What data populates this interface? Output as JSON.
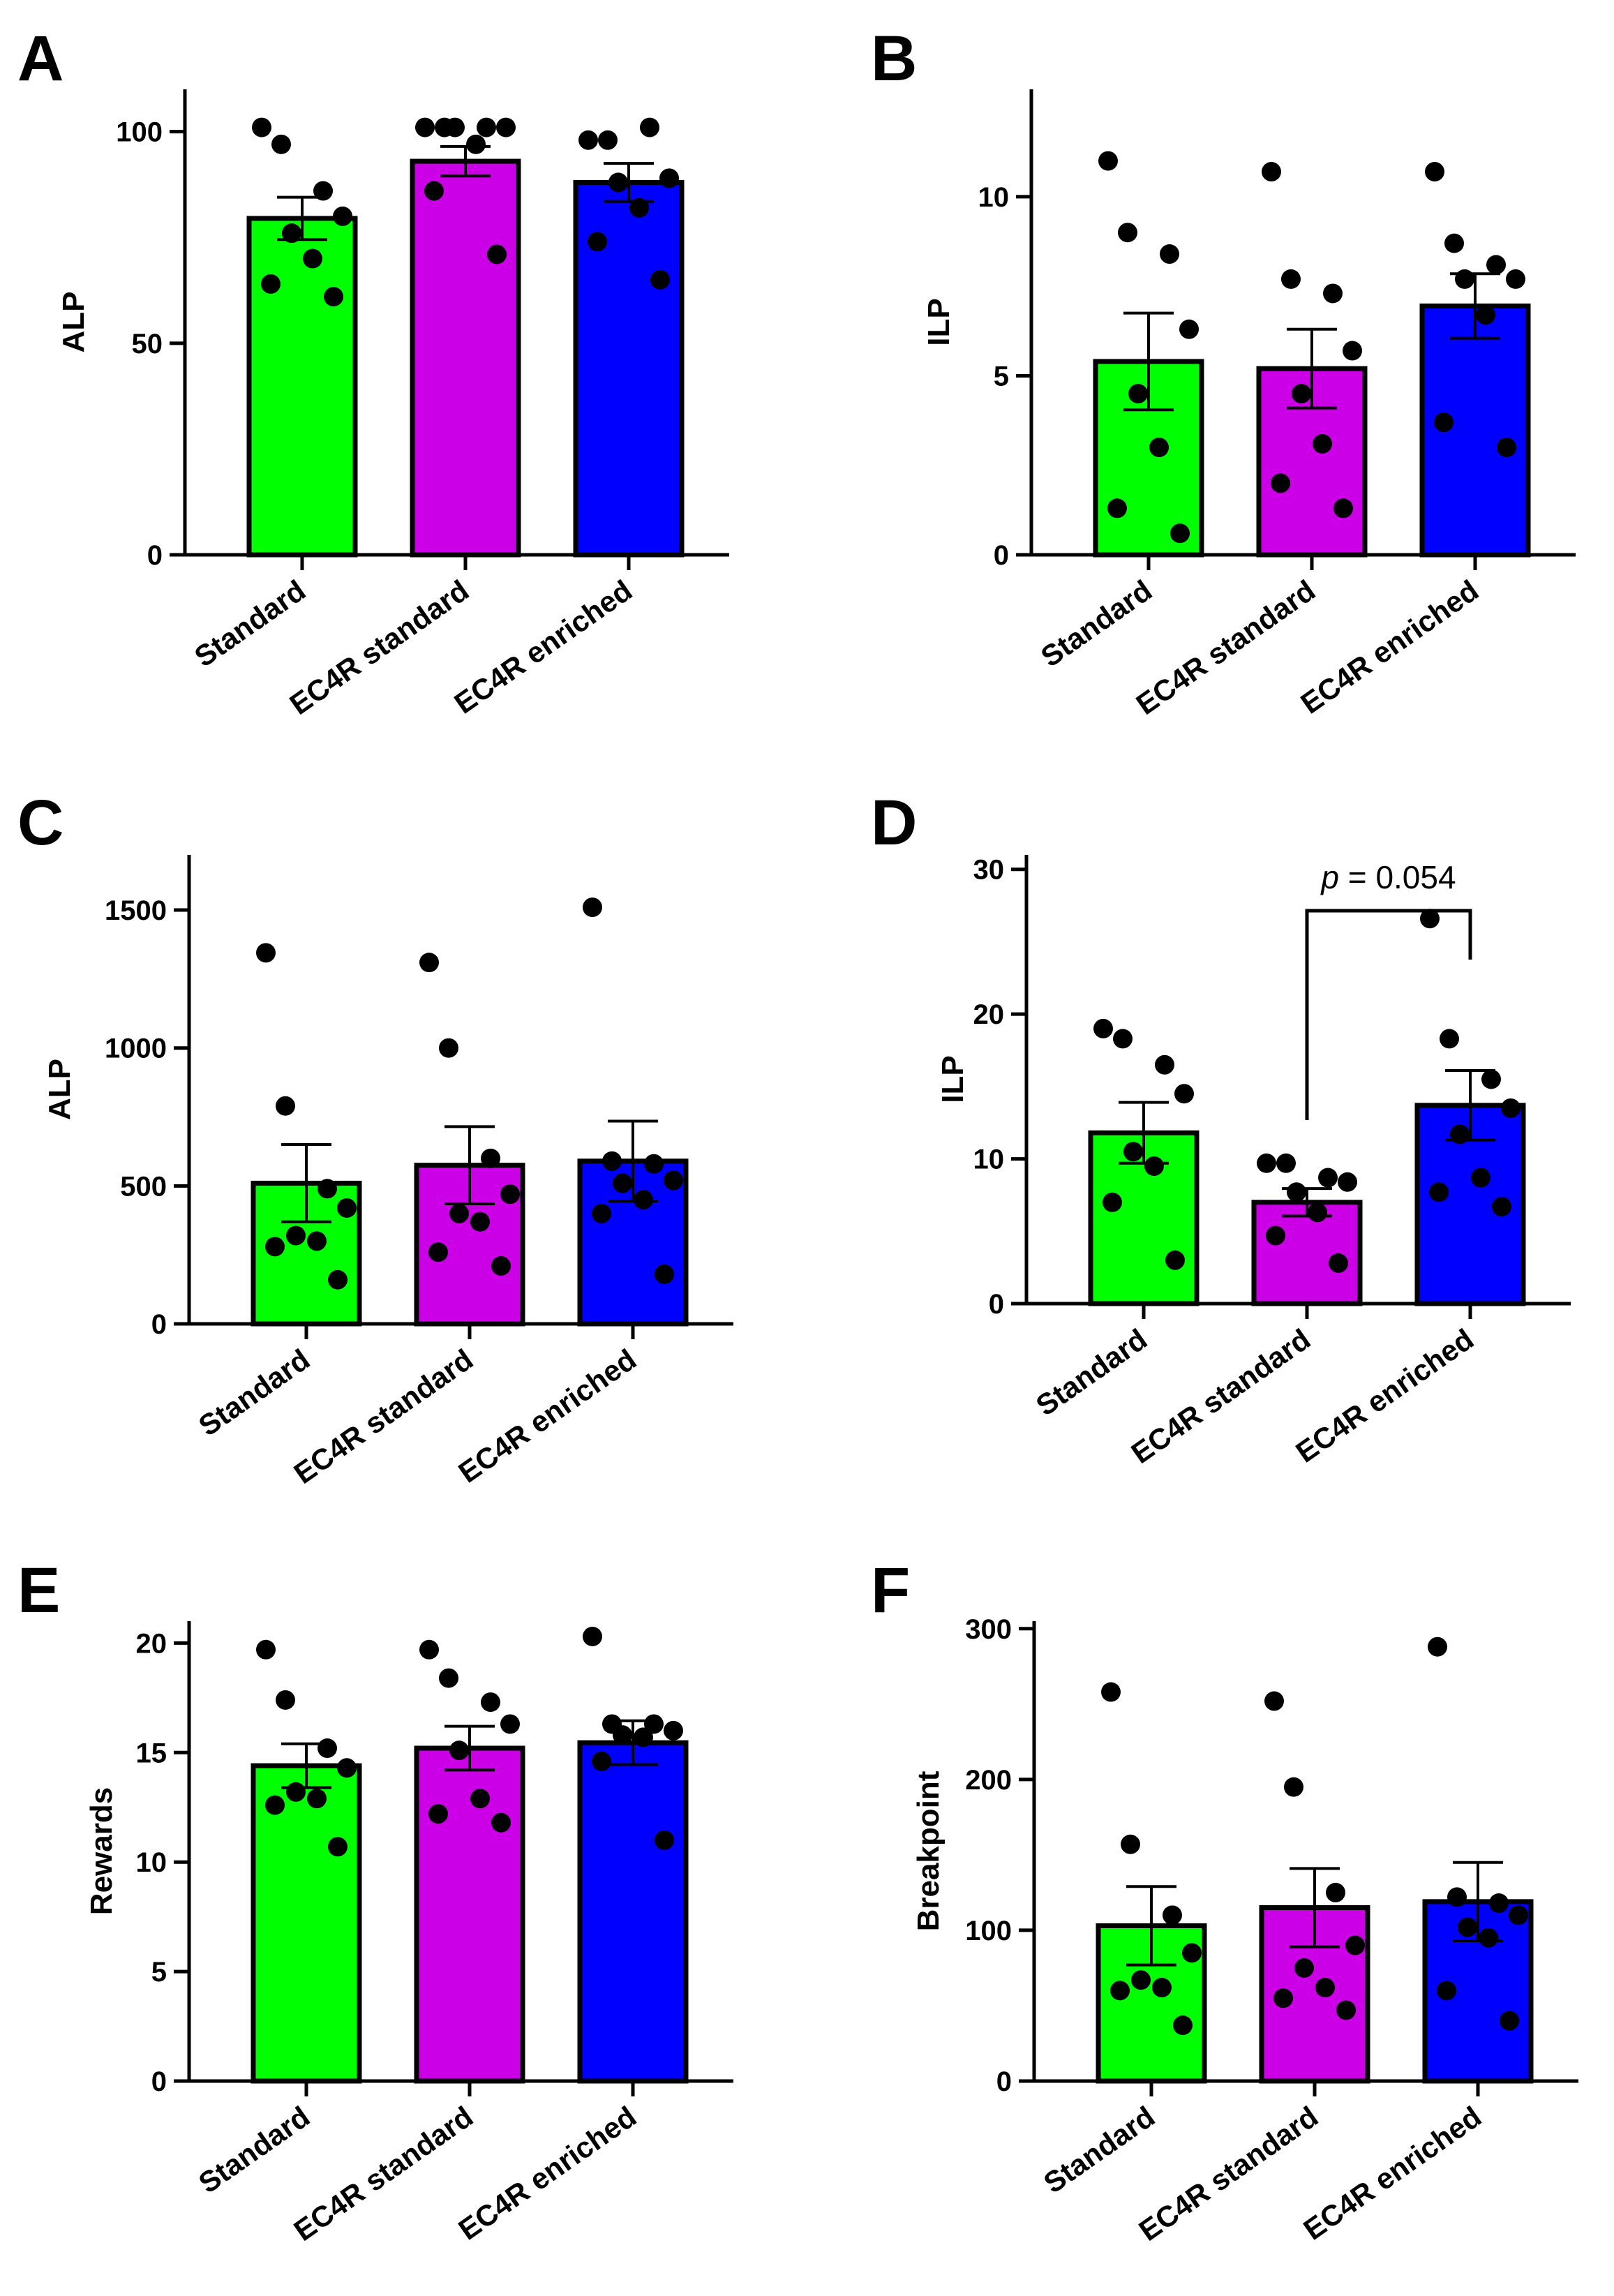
{
  "figure": {
    "colors": {
      "Standard": "#00ff00",
      "EC4R standard": "#cc00e6",
      "EC4R enriched": "#0000ff"
    }
  },
  "chart_data": [
    {
      "panel": "A",
      "type": "bar",
      "ylabel": "ALP",
      "ylim": [
        0,
        110
      ],
      "yticks": [
        0,
        50,
        100
      ],
      "categories": [
        "Standard",
        "EC4R standard",
        "EC4R enriched"
      ],
      "values": [
        79.5,
        93,
        88
      ],
      "sem": [
        5,
        3.5,
        4.5
      ],
      "points": [
        [
          101,
          97,
          86,
          80,
          76,
          70,
          64,
          61
        ],
        [
          101,
          101,
          101,
          101,
          101,
          97,
          86,
          71
        ],
        [
          98,
          98,
          101,
          89,
          88,
          82,
          74,
          65
        ]
      ]
    },
    {
      "panel": "B",
      "type": "bar",
      "ylabel": "ILP",
      "ylim": [
        0,
        13
      ],
      "yticks": [
        0,
        5,
        10
      ],
      "categories": [
        "Standard",
        "EC4R standard",
        "EC4R enriched"
      ],
      "values": [
        5.4,
        5.2,
        6.95
      ],
      "sem": [
        1.35,
        1.1,
        0.9
      ],
      "points": [
        [
          11,
          9,
          8.4,
          6.3,
          4.5,
          3,
          1.3,
          0.6
        ],
        [
          10.7,
          7.7,
          7.3,
          5.7,
          4.5,
          3.1,
          2,
          1.3
        ],
        [
          10.7,
          8.7,
          8.1,
          7.7,
          7.7,
          6.7,
          3.7,
          3
        ]
      ]
    },
    {
      "panel": "C",
      "type": "bar",
      "ylabel": "ALP",
      "ylim": [
        0,
        1700
      ],
      "yticks": [
        0,
        500,
        1000,
        1500
      ],
      "categories": [
        "Standard",
        "EC4R standard",
        "EC4R enriched"
      ],
      "values": [
        510,
        575,
        590
      ],
      "sem": [
        140,
        140,
        145
      ],
      "points": [
        [
          1345,
          790,
          490,
          420,
          320,
          300,
          280,
          160
        ],
        [
          1310,
          1000,
          600,
          470,
          400,
          370,
          260,
          210
        ],
        [
          1510,
          590,
          580,
          520,
          510,
          450,
          400,
          180
        ]
      ]
    },
    {
      "panel": "D",
      "type": "bar",
      "ylabel": "ILP",
      "ylim": [
        0,
        31
      ],
      "yticks": [
        0,
        10,
        20,
        30
      ],
      "categories": [
        "Standard",
        "EC4R standard",
        "EC4R enriched"
      ],
      "values": [
        11.8,
        7,
        13.7
      ],
      "sem": [
        2.1,
        0.95,
        2.4
      ],
      "points": [
        [
          19,
          18.3,
          16.5,
          14.5,
          10.5,
          9.5,
          7,
          3
        ],
        [
          9.7,
          9.7,
          8.7,
          8.4,
          7.7,
          6.3,
          4.7,
          2.8
        ],
        [
          26.6,
          18.3,
          15.5,
          13.5,
          11.7,
          8.7,
          7.7,
          6.7
        ]
      ],
      "annotation": {
        "prefix": "p",
        "text": " = 0.054",
        "between": [
          "EC4R standard",
          "EC4R enriched"
        ]
      }
    },
    {
      "panel": "E",
      "type": "bar",
      "ylabel": "Rewards",
      "ylim": [
        0,
        21
      ],
      "yticks": [
        0,
        5,
        10,
        15,
        20
      ],
      "categories": [
        "Standard",
        "EC4R standard",
        "EC4R enriched"
      ],
      "values": [
        14.4,
        15.2,
        15.45
      ],
      "sem": [
        1,
        1,
        1
      ],
      "points": [
        [
          19.7,
          17.4,
          15.2,
          14.3,
          13.2,
          12.9,
          12.6,
          10.7
        ],
        [
          19.7,
          18.4,
          17.3,
          16.3,
          15.1,
          12.9,
          12.2,
          11.8
        ],
        [
          20.3,
          16.3,
          16.3,
          16.0,
          15.8,
          15.7,
          14.6,
          11
        ]
      ]
    },
    {
      "panel": "F",
      "type": "bar",
      "ylabel": "Breakpoint",
      "ylim": [
        0,
        305
      ],
      "yticks": [
        0,
        100,
        200,
        300
      ],
      "categories": [
        "Standard",
        "EC4R standard",
        "EC4R enriched"
      ],
      "values": [
        103,
        115,
        119
      ],
      "sem": [
        26,
        26,
        26
      ],
      "points": [
        [
          258,
          157,
          110,
          85,
          67,
          62,
          60,
          37
        ],
        [
          252,
          195,
          125,
          90,
          75,
          62,
          55,
          47
        ],
        [
          288,
          122,
          118,
          110,
          102,
          95,
          60,
          40
        ]
      ]
    }
  ]
}
